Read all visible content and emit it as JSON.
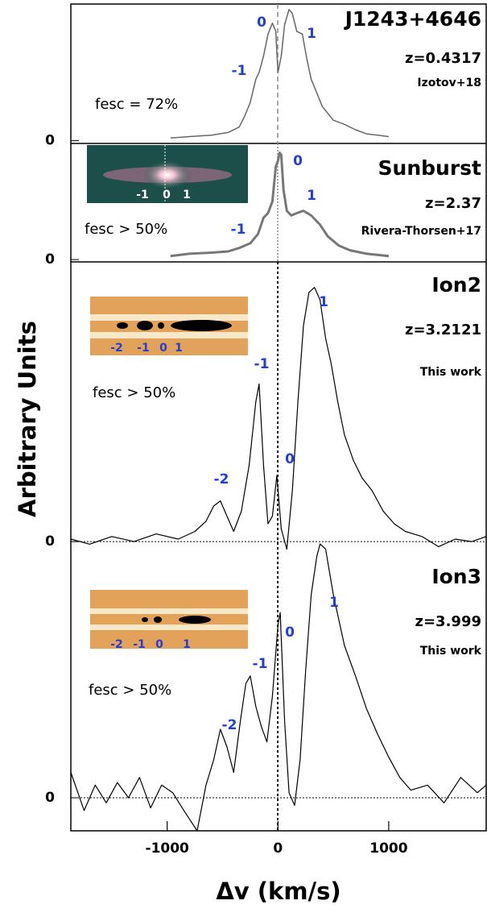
{
  "chart_data": [
    {
      "type": "line",
      "title": "J1243+4646",
      "subtitle": "z=0.4317",
      "reference": "Izotov+18",
      "fesc": "fesc = 72%",
      "ylabel": "Arbitrary Units",
      "color": "#666666",
      "stroke_width": 1.5,
      "zero_line": false,
      "ylim": [
        -0.02,
        1.0
      ],
      "yticks": [
        0
      ],
      "peak_labels": [
        "-1",
        "0",
        "1"
      ],
      "inset_labels": [],
      "x": [
        -970,
        -800,
        -600,
        -450,
        -350,
        -300,
        -250,
        -200,
        -170,
        -130,
        -90,
        -50,
        -20,
        0,
        30,
        60,
        100,
        130,
        170,
        220,
        260,
        300,
        350,
        400,
        500,
        600,
        700,
        800,
        900,
        1000
      ],
      "values": [
        0.02,
        0.03,
        0.04,
        0.06,
        0.1,
        0.18,
        0.28,
        0.45,
        0.5,
        0.62,
        0.78,
        0.86,
        0.8,
        0.5,
        0.62,
        0.85,
        0.96,
        0.93,
        0.8,
        0.78,
        0.6,
        0.45,
        0.35,
        0.25,
        0.15,
        0.12,
        0.08,
        0.05,
        0.04,
        0.03
      ]
    },
    {
      "type": "line",
      "title": "Sunburst",
      "subtitle": "z=2.37",
      "reference": "Rivera-Thorsen+17",
      "fesc": "fesc > 50%",
      "color": "#777777",
      "stroke_width": 3,
      "zero_line": false,
      "ylim": [
        -0.02,
        1.0
      ],
      "yticks": [
        0
      ],
      "peak_labels": [
        "-1",
        "0",
        "1"
      ],
      "inset_labels": [
        "-1",
        "0",
        "1"
      ],
      "x": [
        -970,
        -800,
        -600,
        -450,
        -350,
        -250,
        -180,
        -130,
        -90,
        -50,
        -20,
        0,
        15,
        30,
        50,
        80,
        120,
        170,
        230,
        300,
        380,
        450,
        550,
        650,
        800,
        1000
      ],
      "values": [
        0.03,
        0.05,
        0.06,
        0.07,
        0.1,
        0.14,
        0.22,
        0.36,
        0.4,
        0.5,
        0.8,
        0.85,
        0.92,
        0.9,
        0.6,
        0.42,
        0.38,
        0.4,
        0.42,
        0.38,
        0.3,
        0.2,
        0.12,
        0.08,
        0.05,
        0.03
      ]
    },
    {
      "type": "line",
      "title": "Ion2",
      "subtitle": "z=3.2121",
      "reference": "This work",
      "fesc": "fesc > 50%",
      "color": "#000000",
      "stroke_width": 1.2,
      "zero_line": true,
      "ylim": [
        -0.025,
        1.1
      ],
      "yticks": [
        0
      ],
      "peak_labels": [
        "-2",
        "-1",
        "0",
        "1"
      ],
      "inset_labels": [
        "-2",
        "-1",
        "0",
        "1"
      ],
      "x": [
        -1870,
        -1700,
        -1500,
        -1300,
        -1100,
        -900,
        -750,
        -650,
        -580,
        -520,
        -460,
        -400,
        -330,
        -260,
        -200,
        -170,
        -130,
        -90,
        -50,
        -10,
        30,
        80,
        130,
        180,
        230,
        280,
        330,
        380,
        430,
        480,
        540,
        600,
        680,
        760,
        850,
        950,
        1050,
        1150,
        1300,
        1450,
        1600,
        1750,
        1880
      ],
      "values": [
        0.01,
        -0.01,
        0.02,
        0.0,
        0.03,
        0.01,
        0.04,
        0.08,
        0.14,
        0.16,
        0.1,
        0.04,
        0.12,
        0.3,
        0.55,
        0.62,
        0.3,
        0.07,
        0.1,
        0.26,
        0.05,
        -0.03,
        0.2,
        0.55,
        0.85,
        0.98,
        1.0,
        0.95,
        0.8,
        0.7,
        0.55,
        0.42,
        0.32,
        0.25,
        0.2,
        0.12,
        0.07,
        0.04,
        0.02,
        -0.02,
        0.01,
        0.0,
        0.02
      ]
    },
    {
      "type": "line",
      "title": "Ion3",
      "subtitle": "z=3.999",
      "reference": "This work",
      "fesc": "fesc > 50%",
      "xlabel": "Δv (km/s)",
      "color": "#000000",
      "stroke_width": 1.2,
      "zero_line": true,
      "xlim": [
        -1870,
        1880
      ],
      "xticks": [
        -1000,
        0,
        1000
      ],
      "ylim": [
        -0.13,
        1.0
      ],
      "yticks": [
        0
      ],
      "peak_labels": [
        "-2",
        "-1",
        "0",
        "1"
      ],
      "inset_labels": [
        "-2",
        "-1",
        "0",
        "1"
      ],
      "x": [
        -1870,
        -1750,
        -1650,
        -1550,
        -1450,
        -1350,
        -1250,
        -1150,
        -1050,
        -950,
        -850,
        -730,
        -650,
        -580,
        -520,
        -460,
        -400,
        -340,
        -290,
        -250,
        -200,
        -150,
        -100,
        -50,
        0,
        20,
        60,
        100,
        150,
        200,
        250,
        300,
        350,
        380,
        430,
        500,
        600,
        700,
        800,
        900,
        1000,
        1100,
        1200,
        1350,
        1500,
        1650,
        1800,
        1880
      ],
      "values": [
        0.1,
        -0.05,
        0.05,
        -0.02,
        0.06,
        0.0,
        0.08,
        -0.04,
        0.05,
        0.02,
        -0.05,
        -0.13,
        0.05,
        0.15,
        0.27,
        0.2,
        0.1,
        0.3,
        0.45,
        0.48,
        0.36,
        0.28,
        0.22,
        0.4,
        0.68,
        0.73,
        0.3,
        0.02,
        -0.03,
        0.15,
        0.5,
        0.8,
        0.95,
        1.0,
        0.98,
        0.8,
        0.6,
        0.48,
        0.35,
        0.25,
        0.16,
        0.08,
        0.03,
        0.05,
        -0.02,
        0.08,
        0.02,
        0.05
      ]
    }
  ]
}
